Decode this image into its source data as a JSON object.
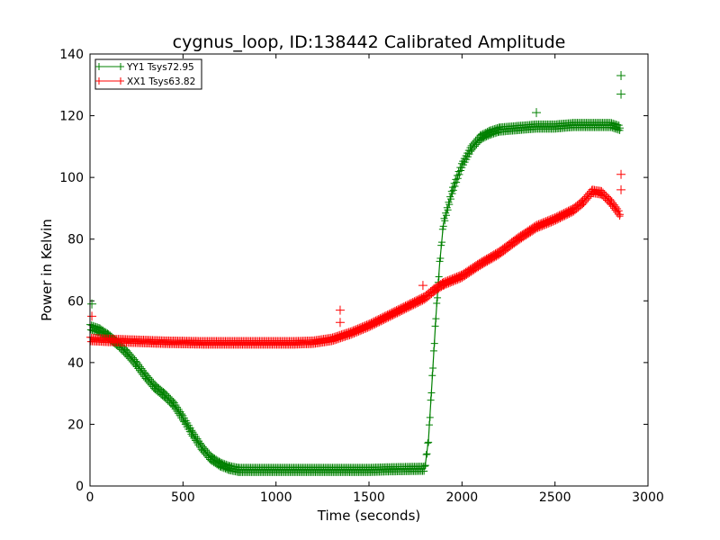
{
  "chart_data": {
    "type": "line",
    "title": "cygnus_loop, ID:138442 Calibrated Amplitude",
    "xlabel": "Time (seconds)",
    "ylabel": "Power in Kelvin",
    "xlim": [
      0,
      3000
    ],
    "ylim": [
      0,
      140
    ],
    "xticks": [
      0,
      500,
      1000,
      1500,
      2000,
      2500,
      3000
    ],
    "yticks": [
      0,
      20,
      40,
      60,
      80,
      100,
      120,
      140
    ],
    "grid": false,
    "legend_position": "top-left",
    "marker": "+",
    "series": [
      {
        "name": "YY1 Tsys72.95",
        "color": "#008000",
        "points": [
          [
            0,
            51.5
          ],
          [
            50,
            50.5
          ],
          [
            100,
            48.5
          ],
          [
            150,
            46.0
          ],
          [
            200,
            43.0
          ],
          [
            250,
            39.5
          ],
          [
            300,
            35.5
          ],
          [
            350,
            32.0
          ],
          [
            400,
            29.5
          ],
          [
            450,
            26.5
          ],
          [
            500,
            22.0
          ],
          [
            550,
            17.0
          ],
          [
            600,
            12.5
          ],
          [
            650,
            9.0
          ],
          [
            700,
            7.0
          ],
          [
            750,
            5.8
          ],
          [
            800,
            5.2
          ],
          [
            900,
            5.2
          ],
          [
            1000,
            5.2
          ],
          [
            1100,
            5.2
          ],
          [
            1200,
            5.2
          ],
          [
            1300,
            5.2
          ],
          [
            1400,
            5.2
          ],
          [
            1500,
            5.2
          ],
          [
            1600,
            5.4
          ],
          [
            1700,
            5.5
          ],
          [
            1800,
            5.6
          ],
          [
            1820,
            15.0
          ],
          [
            1840,
            35.0
          ],
          [
            1860,
            55.0
          ],
          [
            1880,
            72.0
          ],
          [
            1900,
            85.0
          ],
          [
            1950,
            96.0
          ],
          [
            2000,
            104.0
          ],
          [
            2050,
            109.5
          ],
          [
            2100,
            113.0
          ],
          [
            2150,
            114.5
          ],
          [
            2200,
            115.5
          ],
          [
            2300,
            116.0
          ],
          [
            2400,
            116.5
          ],
          [
            2500,
            116.5
          ],
          [
            2600,
            117.0
          ],
          [
            2700,
            117.0
          ],
          [
            2800,
            117.0
          ],
          [
            2850,
            116.0
          ]
        ]
      },
      {
        "name": "XX1 Tsys63.82",
        "color": "#ff0000",
        "points": [
          [
            0,
            47.5
          ],
          [
            100,
            47.2
          ],
          [
            200,
            47.0
          ],
          [
            300,
            46.8
          ],
          [
            400,
            46.6
          ],
          [
            500,
            46.5
          ],
          [
            600,
            46.4
          ],
          [
            700,
            46.4
          ],
          [
            800,
            46.4
          ],
          [
            900,
            46.4
          ],
          [
            1000,
            46.4
          ],
          [
            1100,
            46.4
          ],
          [
            1200,
            46.6
          ],
          [
            1300,
            47.5
          ],
          [
            1400,
            49.5
          ],
          [
            1500,
            52.0
          ],
          [
            1600,
            55.0
          ],
          [
            1700,
            58.0
          ],
          [
            1800,
            61.0
          ],
          [
            1850,
            63.5
          ],
          [
            1900,
            65.5
          ],
          [
            2000,
            68.0
          ],
          [
            2100,
            72.0
          ],
          [
            2200,
            75.5
          ],
          [
            2300,
            80.0
          ],
          [
            2400,
            84.0
          ],
          [
            2500,
            86.5
          ],
          [
            2600,
            89.5
          ],
          [
            2650,
            92.0
          ],
          [
            2700,
            95.5
          ],
          [
            2750,
            95.0
          ],
          [
            2800,
            92.0
          ],
          [
            2850,
            88.0
          ]
        ]
      }
    ],
    "spikes": [
      {
        "series": 0,
        "x": 10,
        "y": 59
      },
      {
        "series": 0,
        "x": 2400,
        "y": 121
      },
      {
        "series": 0,
        "x": 2855,
        "y": 133
      },
      {
        "series": 0,
        "x": 2855,
        "y": 127
      },
      {
        "series": 1,
        "x": 10,
        "y": 55
      },
      {
        "series": 1,
        "x": 1345,
        "y": 57
      },
      {
        "series": 1,
        "x": 1345,
        "y": 53
      },
      {
        "series": 1,
        "x": 1790,
        "y": 65
      },
      {
        "series": 1,
        "x": 2855,
        "y": 101
      },
      {
        "series": 1,
        "x": 2855,
        "y": 96
      }
    ]
  }
}
